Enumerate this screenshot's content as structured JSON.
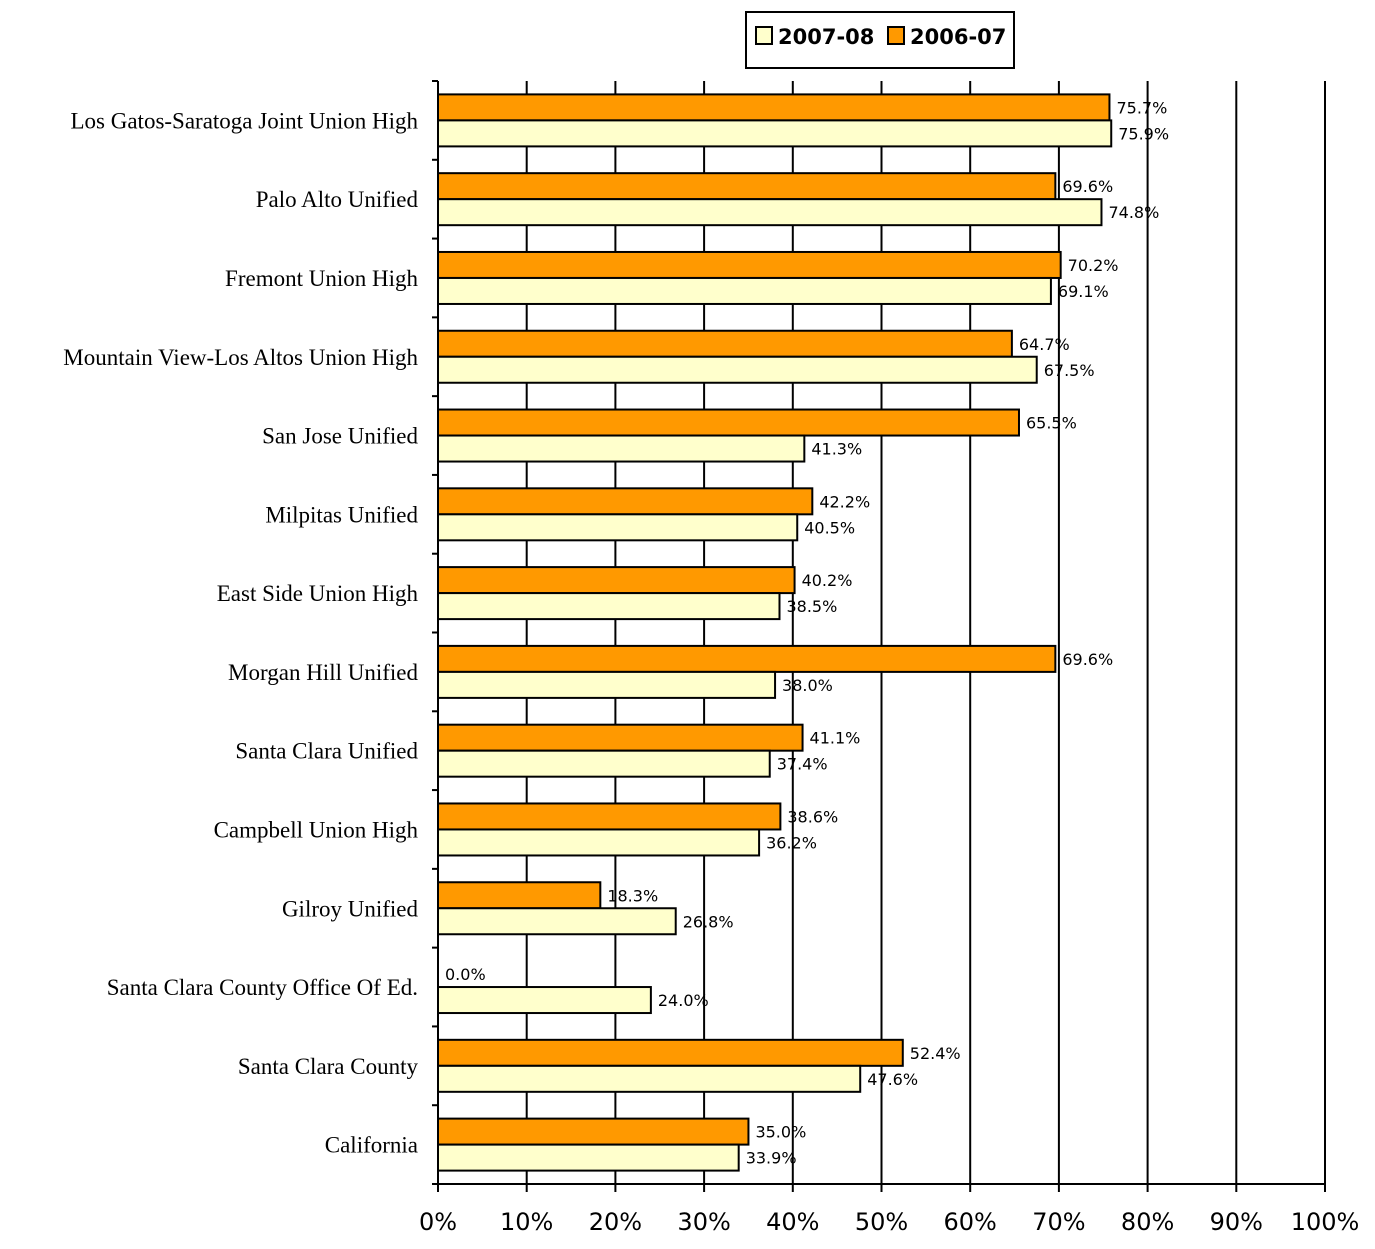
{
  "chart_data": {
    "type": "bar",
    "orientation": "horizontal",
    "categories": [
      "Los Gatos-Saratoga Joint Union High",
      "Palo Alto Unified",
      "Fremont Union High",
      "Mountain View-Los Altos Union High",
      "San Jose Unified",
      "Milpitas Unified",
      "East Side Union High",
      "Morgan Hill Unified",
      "Santa Clara Unified",
      "Campbell Union High",
      "Gilroy Unified",
      "Santa Clara County Office Of Ed.",
      "Santa Clara County",
      "California"
    ],
    "series": [
      {
        "name": "2006-07",
        "color": "#ff9900",
        "values": [
          75.7,
          69.6,
          70.2,
          64.7,
          65.5,
          42.2,
          40.2,
          69.6,
          41.1,
          38.6,
          18.3,
          0.0,
          52.4,
          35.0
        ],
        "labels": [
          "75.7%",
          "69.6%",
          "70.2%",
          "64.7%",
          "65.5%",
          "42.2%",
          "40.2%",
          "69.6%",
          "41.1%",
          "38.6%",
          "18.3%",
          "0.0%",
          "52.4%",
          "35.0%"
        ]
      },
      {
        "name": "2007-08",
        "color": "#ffffcc",
        "values": [
          75.9,
          74.8,
          69.1,
          67.5,
          41.3,
          40.5,
          38.5,
          38.0,
          37.4,
          36.2,
          26.8,
          24.0,
          47.6,
          33.9
        ],
        "labels": [
          "75.9%",
          "74.8%",
          "69.1%",
          "67.5%",
          "41.3%",
          "40.5%",
          "38.5%",
          "38.0%",
          "37.4%",
          "36.2%",
          "26.8%",
          "24.0%",
          "47.6%",
          "33.9%"
        ]
      }
    ],
    "xlim": [
      0,
      100
    ],
    "xticks": [
      "0%",
      "10%",
      "20%",
      "30%",
      "40%",
      "50%",
      "60%",
      "70%",
      "80%",
      "90%",
      "100%"
    ],
    "grid": true,
    "legend": {
      "position": "top",
      "entries": [
        {
          "name": "2007-08",
          "color": "#ffffcc"
        },
        {
          "name": "2006-07",
          "color": "#ff9900"
        }
      ]
    },
    "title": "",
    "xlabel": "",
    "ylabel": ""
  }
}
